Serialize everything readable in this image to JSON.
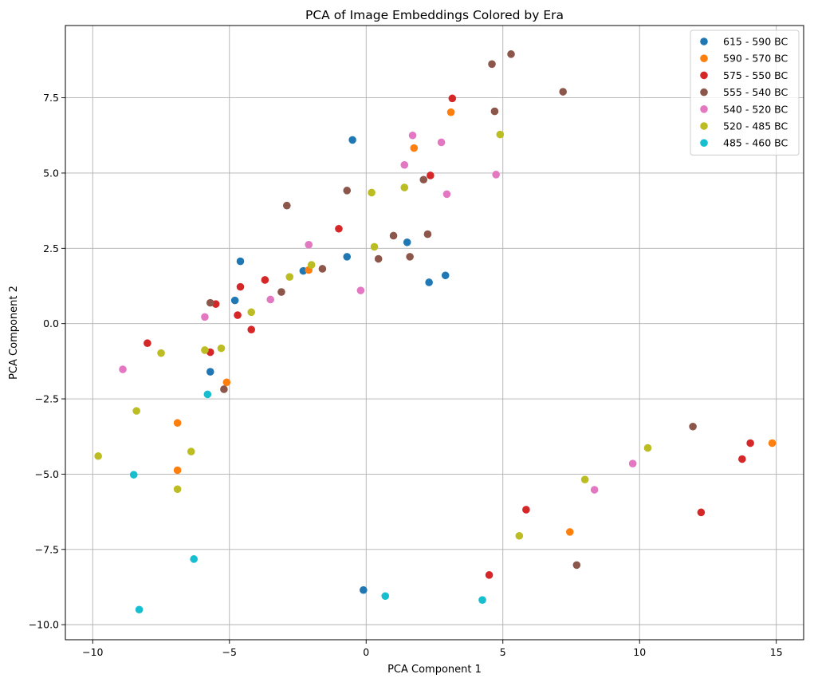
{
  "chart_data": {
    "type": "scatter",
    "title": "PCA of Image Embeddings Colored by Era",
    "xlabel": "PCA Component 1",
    "ylabel": "PCA Component 2",
    "xlim": [
      -11,
      16
    ],
    "ylim": [
      -10.5,
      9.9
    ],
    "xticks": [
      -10,
      -5,
      0,
      5,
      10,
      15
    ],
    "yticks": [
      -10.0,
      -7.5,
      -5.0,
      -2.5,
      0.0,
      2.5,
      5.0,
      7.5
    ],
    "xtick_labels": [
      "−10",
      "−5",
      "0",
      "5",
      "10",
      "15"
    ],
    "ytick_labels": [
      "−10.0",
      "−7.5",
      "−5.0",
      "−2.5",
      "0.0",
      "2.5",
      "5.0",
      "7.5"
    ],
    "grid": true,
    "legend_position": "top-right",
    "series": [
      {
        "name": "615 - 590 BC",
        "color": "#1f77b4",
        "points": [
          [
            -0.5,
            6.1
          ],
          [
            -4.6,
            2.07
          ],
          [
            -0.7,
            2.22
          ],
          [
            1.5,
            2.7
          ],
          [
            2.9,
            1.6
          ],
          [
            2.3,
            1.37
          ],
          [
            -2.3,
            1.75
          ],
          [
            -4.8,
            0.77
          ],
          [
            -5.7,
            -1.6
          ],
          [
            -0.1,
            -8.85
          ]
        ]
      },
      {
        "name": "590 - 570 BC",
        "color": "#ff7f0e",
        "points": [
          [
            3.1,
            7.02
          ],
          [
            1.75,
            5.83
          ],
          [
            -2.1,
            1.78
          ],
          [
            -5.1,
            -1.95
          ],
          [
            -6.9,
            -3.3
          ],
          [
            -6.9,
            -4.87
          ],
          [
            7.45,
            -6.92
          ],
          [
            14.85,
            -3.97
          ]
        ]
      },
      {
        "name": "575 - 550 BC",
        "color": "#d62728",
        "points": [
          [
            3.15,
            7.48
          ],
          [
            2.35,
            4.92
          ],
          [
            -1.0,
            3.15
          ],
          [
            -3.7,
            1.45
          ],
          [
            -4.6,
            1.22
          ],
          [
            -5.5,
            0.65
          ],
          [
            -4.7,
            0.28
          ],
          [
            -4.2,
            -0.2
          ],
          [
            -8.0,
            -0.65
          ],
          [
            -5.7,
            -0.95
          ],
          [
            5.85,
            -6.18
          ],
          [
            4.5,
            -8.35
          ],
          [
            12.25,
            -6.27
          ],
          [
            13.75,
            -4.5
          ],
          [
            14.05,
            -3.97
          ]
        ]
      },
      {
        "name": "555 - 540 BC",
        "color": "#8c564b",
        "points": [
          [
            4.6,
            8.62
          ],
          [
            5.3,
            8.95
          ],
          [
            7.2,
            7.7
          ],
          [
            4.7,
            7.05
          ],
          [
            2.1,
            4.78
          ],
          [
            -0.7,
            4.42
          ],
          [
            -2.9,
            3.92
          ],
          [
            1.0,
            2.92
          ],
          [
            2.25,
            2.97
          ],
          [
            1.6,
            2.22
          ],
          [
            0.45,
            2.15
          ],
          [
            -1.6,
            1.82
          ],
          [
            -3.1,
            1.05
          ],
          [
            -5.7,
            0.69
          ],
          [
            -5.2,
            -2.18
          ],
          [
            7.7,
            -8.02
          ],
          [
            11.95,
            -3.42
          ]
        ]
      },
      {
        "name": "540 - 520 BC",
        "color": "#e377c2",
        "points": [
          [
            1.7,
            6.25
          ],
          [
            2.75,
            6.02
          ],
          [
            1.4,
            5.27
          ],
          [
            4.75,
            4.95
          ],
          [
            2.95,
            4.3
          ],
          [
            -2.1,
            2.62
          ],
          [
            -0.2,
            1.1
          ],
          [
            -3.5,
            0.8
          ],
          [
            -5.9,
            0.22
          ],
          [
            -8.9,
            -1.52
          ],
          [
            9.75,
            -4.65
          ],
          [
            8.35,
            -5.52
          ]
        ]
      },
      {
        "name": "520 - 485 BC",
        "color": "#bcbd22",
        "points": [
          [
            4.9,
            6.28
          ],
          [
            0.2,
            4.35
          ],
          [
            1.4,
            4.52
          ],
          [
            0.3,
            2.55
          ],
          [
            -2.0,
            1.95
          ],
          [
            -2.8,
            1.55
          ],
          [
            -4.2,
            0.38
          ],
          [
            -5.3,
            -0.82
          ],
          [
            -5.9,
            -0.88
          ],
          [
            -7.5,
            -0.98
          ],
          [
            -8.4,
            -2.9
          ],
          [
            -6.4,
            -4.25
          ],
          [
            -9.8,
            -4.4
          ],
          [
            -6.9,
            -5.5
          ],
          [
            8.0,
            -5.18
          ],
          [
            10.3,
            -4.13
          ],
          [
            5.6,
            -7.05
          ]
        ]
      },
      {
        "name": "485 - 460 BC",
        "color": "#17becf",
        "points": [
          [
            -5.8,
            -2.35
          ],
          [
            -8.5,
            -5.02
          ],
          [
            -6.3,
            -7.82
          ],
          [
            -8.3,
            -9.5
          ],
          [
            0.7,
            -9.05
          ],
          [
            4.25,
            -9.18
          ]
        ]
      }
    ]
  }
}
